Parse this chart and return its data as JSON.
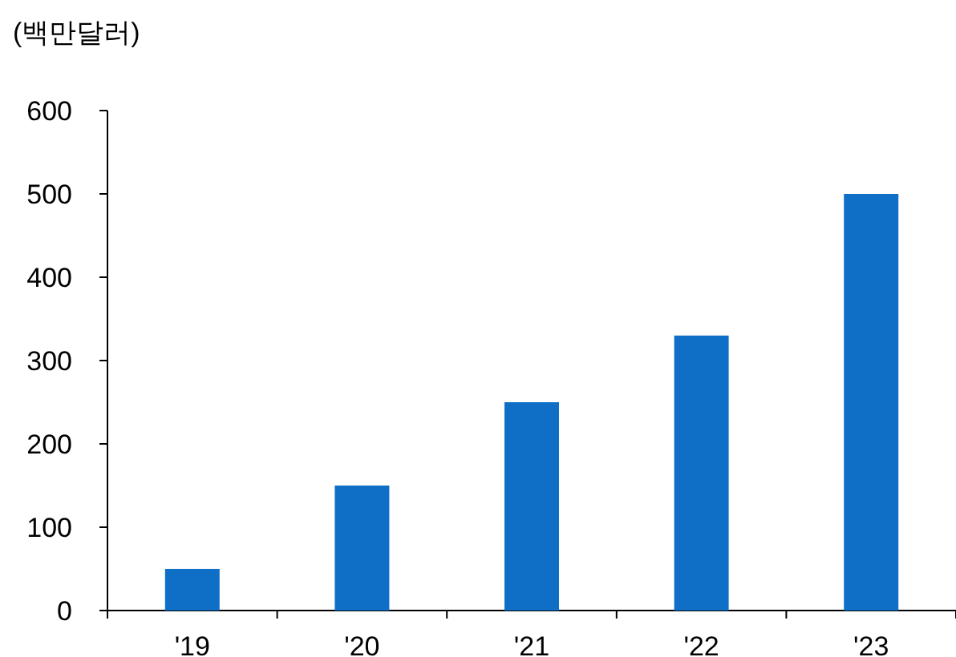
{
  "chart_data": {
    "type": "bar",
    "ylabel": "(백만달러)",
    "categories": [
      "'19",
      "'20",
      "'21",
      "'22",
      "'23"
    ],
    "series": [
      {
        "color": "#0f6fc6",
        "values": [
          50,
          150,
          250,
          330,
          500
        ]
      }
    ],
    "ylim": [
      0,
      600
    ],
    "yticks": [
      0,
      100,
      200,
      300,
      400,
      500,
      600
    ],
    "grid": false
  }
}
